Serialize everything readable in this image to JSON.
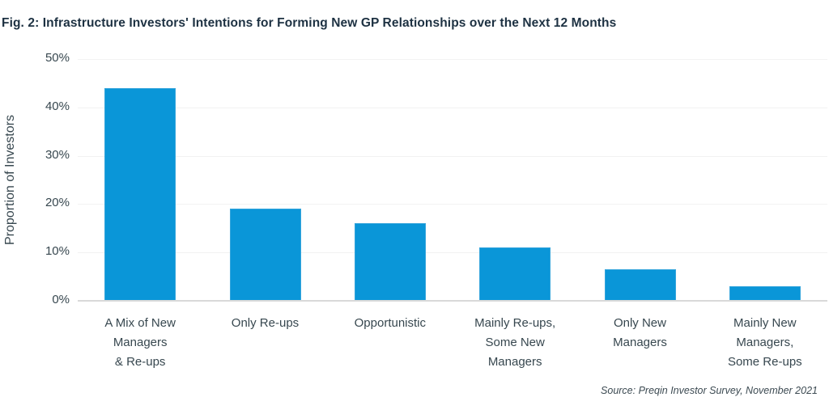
{
  "title": "Fig. 2: Infrastructure Investors' Intentions for Forming New GP Relationships over the Next 12 Months",
  "source": "Source: Preqin Investor Survey, November 2021",
  "colors": {
    "bar": "#0A96D8",
    "bar_edge": "#35A5DC",
    "title_text": "#1D3142",
    "axis_text": "#37474F",
    "gridline": "#F2F2F2",
    "axis_line": "#D9D9D9"
  },
  "chart_data": {
    "type": "bar",
    "title": "Fig. 2: Infrastructure Investors' Intentions for Forming New GP Relationships over the Next 12 Months",
    "categories": [
      "A Mix of New Managers & Re-ups",
      "Only Re-ups",
      "Opportunistic",
      "Mainly Re-ups, Some New Managers",
      "Only New Managers",
      "Mainly New Managers, Some Re-ups"
    ],
    "category_lines": [
      [
        "A Mix of New",
        "Managers",
        "& Re-ups"
      ],
      [
        "Only Re-ups"
      ],
      [
        "Opportunistic"
      ],
      [
        "Mainly Re-ups,",
        "Some New",
        "Managers"
      ],
      [
        "Only New",
        "Managers"
      ],
      [
        "Mainly New",
        "Managers,",
        "Some Re-ups"
      ]
    ],
    "values": [
      44,
      19,
      16,
      11,
      6.5,
      3
    ],
    "xlabel": "",
    "ylabel": "Proportion of Investors",
    "ylim": [
      0,
      50
    ],
    "yticks": [
      0,
      10,
      20,
      30,
      40,
      50
    ],
    "ytick_labels": [
      "0%",
      "10%",
      "20%",
      "30%",
      "40%",
      "50%"
    ],
    "grid": "horizontal",
    "legend": "none",
    "annotation": "Source: Preqin Investor Survey, November 2021"
  }
}
